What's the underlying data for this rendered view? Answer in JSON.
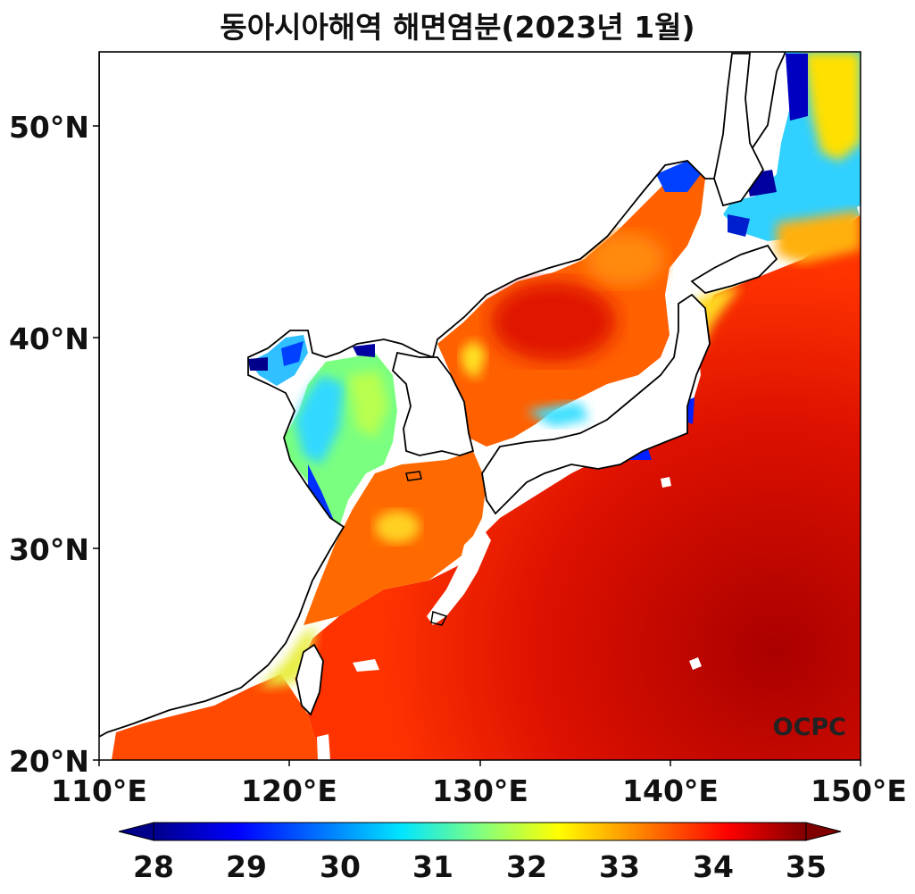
{
  "title": "동아시아해역 해면염분(2023년 1월)",
  "watermark": "OCPC",
  "axes": {
    "lon_min": 110,
    "lon_max": 150,
    "lat_min": 20,
    "lat_max": 53.5,
    "x_ticks": [
      "110°E",
      "120°E",
      "130°E",
      "140°E",
      "150°E"
    ],
    "y_ticks": [
      "20°N",
      "30°N",
      "40°N",
      "50°N"
    ]
  },
  "colorbar": {
    "min": 28,
    "max": 35,
    "extend": "both",
    "ticks": [
      "28",
      "29",
      "30",
      "31",
      "32",
      "33",
      "34",
      "35"
    ],
    "colors": [
      "#00008b",
      "#0000ff",
      "#0080ff",
      "#00e5ff",
      "#80ff80",
      "#ffff00",
      "#ff8000",
      "#ff0000",
      "#800000"
    ]
  },
  "land_color": "#ffffff",
  "coast_color": "#000000"
}
